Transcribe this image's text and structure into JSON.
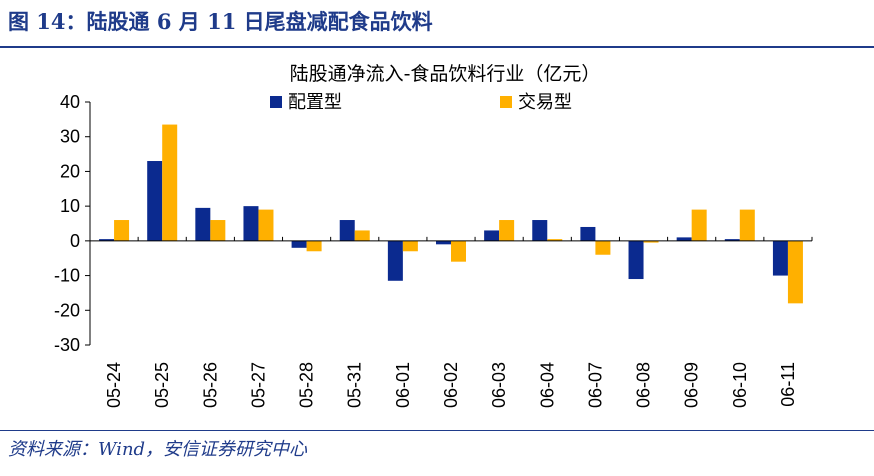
{
  "figure": {
    "title": "图 14：陆股通 6 月 11 日尾盘减配食品饮料",
    "source": "资料来源：Wind，安信证券研究中心"
  },
  "colors": {
    "accent": "#1f3b8a",
    "series1": "#0b2a8f",
    "series2": "#ffb000"
  },
  "chart_data": {
    "type": "bar",
    "title": "陆股通净流入-食品饮料行业（亿元）",
    "categories": [
      "05-24",
      "05-25",
      "05-26",
      "05-27",
      "05-28",
      "05-31",
      "06-01",
      "06-02",
      "06-03",
      "06-04",
      "06-07",
      "06-08",
      "06-09",
      "06-10",
      "06-11"
    ],
    "series": [
      {
        "name": "配置型",
        "values": [
          0.5,
          23,
          9.5,
          10,
          -2,
          6,
          -11.5,
          -1,
          3,
          6,
          4,
          -11,
          1,
          0.5,
          -10
        ]
      },
      {
        "name": "交易型",
        "values": [
          6,
          33.5,
          6,
          9,
          -3,
          3,
          -3,
          -6,
          6,
          0.5,
          -4,
          -0.5,
          9,
          9,
          -18
        ]
      }
    ],
    "ylim": [
      -30,
      40
    ],
    "yticks": [
      -30,
      -20,
      -10,
      0,
      10,
      20,
      30,
      40
    ],
    "legend": "top"
  }
}
